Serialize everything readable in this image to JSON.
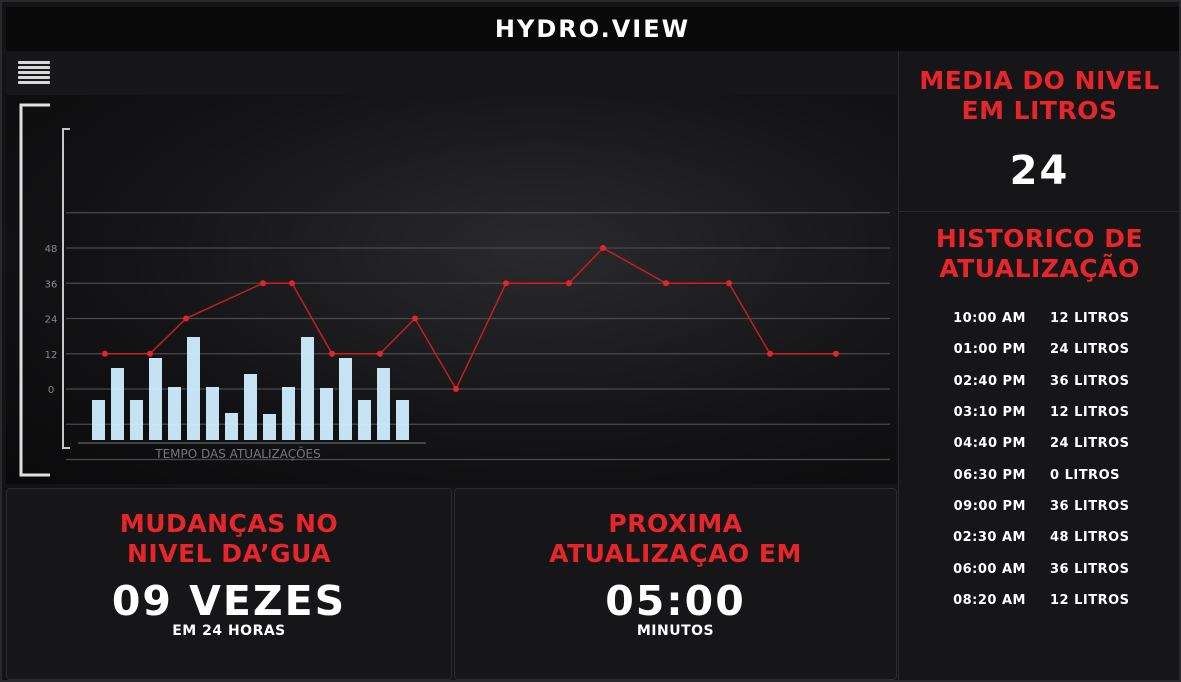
{
  "app": {
    "title": "HYDRO.VIEW"
  },
  "toolbar": {
    "menu_icon": "hamburger-menu-icon"
  },
  "chart_data": {
    "type": "line",
    "y_ticks": [
      "48",
      "36",
      "24",
      "12",
      "0"
    ],
    "ylim": [
      -24,
      60
    ],
    "line_series": {
      "color": "#cc1f1f",
      "values": [
        12,
        12,
        24,
        36,
        36,
        12,
        12,
        24,
        0,
        36,
        36,
        48,
        36,
        36,
        12,
        12
      ]
    },
    "bar_series": {
      "color": "#cfeeff",
      "values": [
        40,
        72,
        40,
        82,
        53,
        103,
        53,
        27,
        66,
        26,
        53,
        103,
        52,
        82,
        40,
        72,
        40
      ]
    },
    "bar_axis_label": "TEMPO DAS ATUALIZAÇÕES",
    "grid": true
  },
  "media": {
    "title_line1": "MEDIA DO NIVEL",
    "title_line2": "EM LITROS",
    "value": "24"
  },
  "history": {
    "title_line1": "HISTORICO DE",
    "title_line2": "ATUALIZAÇÃO",
    "rows": [
      {
        "time": "10:00 AM",
        "value": "12 LITROS"
      },
      {
        "time": "01:00 PM",
        "value": "24 LITROS"
      },
      {
        "time": "02:40 PM",
        "value": "36 LITROS"
      },
      {
        "time": "03:10 PM",
        "value": "12 LITROS"
      },
      {
        "time": "04:40 PM",
        "value": "24 LITROS"
      },
      {
        "time": "06:30 PM",
        "value": "0 LITROS"
      },
      {
        "time": "09:00 PM",
        "value": "36 LITROS"
      },
      {
        "time": "02:30 AM",
        "value": "48 LITROS"
      },
      {
        "time": "06:00 AM",
        "value": "36 LITROS"
      },
      {
        "time": "08:20 AM",
        "value": "12 LITROS"
      }
    ]
  },
  "changes": {
    "title_line1": "MUDANÇAS NO",
    "title_line2": "NIVEL DA’GUA",
    "value": "09 VEZES",
    "subtitle": "EM 24 HORAS"
  },
  "next_update": {
    "title_line1": "PROXIMA",
    "title_line2": "ATUALIZAÇAO EM",
    "value": "05:00",
    "subtitle": "MINUTOS"
  }
}
